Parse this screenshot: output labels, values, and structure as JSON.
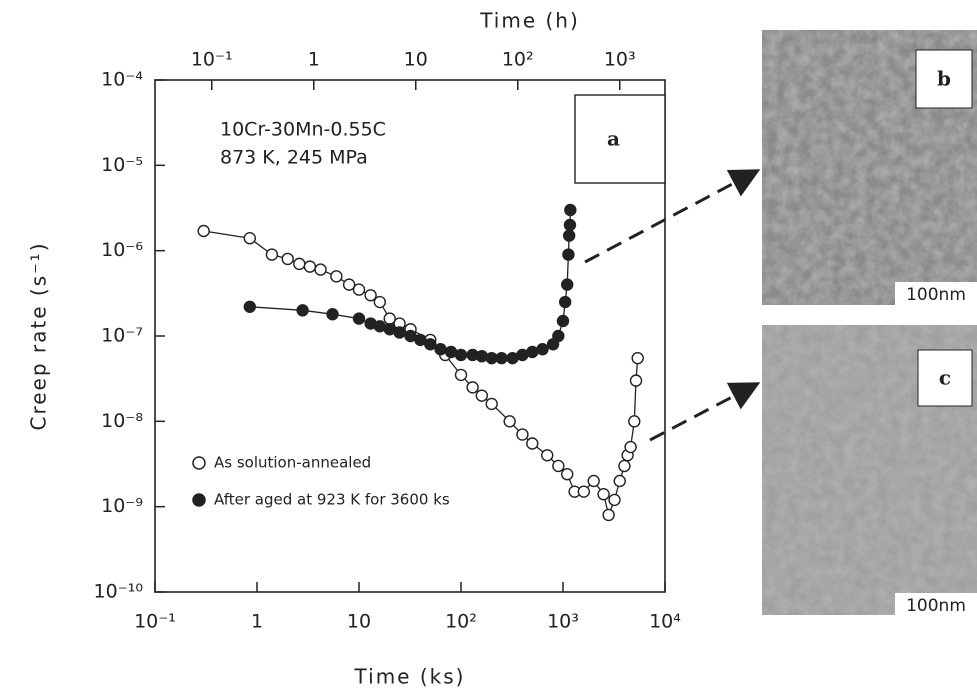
{
  "chart_data": {
    "type": "scatter",
    "xlabel": "Time (ks)",
    "x2label": "Time (h)",
    "ylabel": "Creep rate (s⁻¹)",
    "log_x": true,
    "log_y": true,
    "xlim": [
      0.1,
      10000
    ],
    "x2lim": [
      0.02778,
      2778
    ],
    "ylim": [
      1e-10,
      0.0001
    ],
    "xticks": [
      {
        "value": 0.1,
        "label": "10⁻¹"
      },
      1,
      10,
      {
        "value": 100,
        "label": "10²"
      },
      {
        "value": 1000,
        "label": "10³"
      },
      {
        "value": 10000,
        "label": "10⁴"
      }
    ],
    "x2ticks": [
      {
        "value": 0.1,
        "label": "10⁻¹"
      },
      1,
      10,
      {
        "value": 100,
        "label": "10²"
      },
      {
        "value": 1000,
        "label": "10³"
      }
    ],
    "yticks": [
      {
        "value": 1e-10,
        "label": "10⁻¹⁰"
      },
      {
        "value": 1e-09,
        "label": "10⁻⁹"
      },
      {
        "value": 1e-08,
        "label": "10⁻⁸"
      },
      {
        "value": 1e-07,
        "label": "10⁻⁷"
      },
      {
        "value": 1e-06,
        "label": "10⁻⁶"
      },
      {
        "value": 1e-05,
        "label": "10⁻⁵"
      },
      {
        "value": 0.0001,
        "label": "10⁻⁴"
      }
    ],
    "annotations": [
      "10Cr-30Mn-0.55C",
      "873 K, 245 MPa",
      "a"
    ],
    "series": [
      {
        "name": "As solution-annealed",
        "marker": "open",
        "color": "#222",
        "x": [
          0.3,
          0.85,
          1.4,
          2,
          2.6,
          3.3,
          4.2,
          6,
          8,
          10,
          13,
          16,
          20,
          25,
          32,
          50,
          70,
          100,
          130,
          160,
          200,
          300,
          400,
          500,
          700,
          900,
          1100,
          1300,
          1600,
          2000,
          2500,
          2800,
          3200,
          3600,
          4000,
          4300,
          4600,
          5000,
          5200,
          5400
        ],
        "values": [
          1.7e-06,
          1.4e-06,
          9e-07,
          8e-07,
          7e-07,
          6.5e-07,
          6e-07,
          5e-07,
          4e-07,
          3.5e-07,
          3e-07,
          2.5e-07,
          1.6e-07,
          1.4e-07,
          1.2e-07,
          9e-08,
          6e-08,
          3.5e-08,
          2.5e-08,
          2e-08,
          1.6e-08,
          1e-08,
          7e-09,
          5.5e-09,
          4e-09,
          3e-09,
          2.4e-09,
          1.5e-09,
          1.5e-09,
          2e-09,
          1.4e-09,
          8e-10,
          1.2e-09,
          2e-09,
          3e-09,
          4e-09,
          5e-09,
          1e-08,
          3e-08,
          5.5e-08
        ]
      },
      {
        "name": "After aged at 923 K for 3600 ks",
        "marker": "filled",
        "color": "#222",
        "x": [
          0.85,
          2.8,
          5.5,
          10,
          13,
          16,
          20,
          25,
          32,
          40,
          50,
          63,
          80,
          100,
          130,
          160,
          200,
          250,
          320,
          400,
          500,
          630,
          800,
          900,
          1000,
          1050,
          1100,
          1130,
          1150,
          1170,
          1180
        ],
        "values": [
          2.2e-07,
          2e-07,
          1.8e-07,
          1.6e-07,
          1.4e-07,
          1.3e-07,
          1.2e-07,
          1.1e-07,
          1e-07,
          9e-08,
          8e-08,
          7e-08,
          6.5e-08,
          6e-08,
          6e-08,
          5.8e-08,
          5.5e-08,
          5.5e-08,
          5.5e-08,
          6e-08,
          6.5e-08,
          7e-08,
          8e-08,
          1e-07,
          1.5e-07,
          2.5e-07,
          4e-07,
          9e-07,
          1.5e-06,
          2e-06,
          3e-06
        ]
      }
    ],
    "panels": [
      {
        "label": "b",
        "scale_bar": "100nm"
      },
      {
        "label": "c",
        "scale_bar": "100nm"
      }
    ]
  }
}
